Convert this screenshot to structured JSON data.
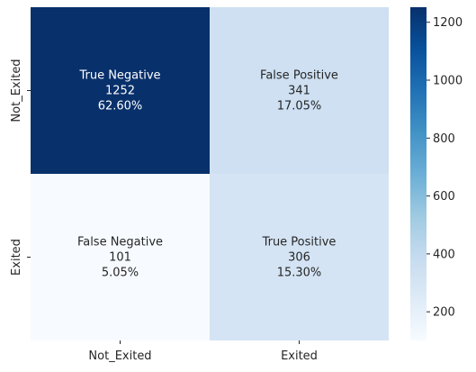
{
  "chart_data": {
    "type": "heatmap",
    "title": "",
    "xlabel": "",
    "ylabel": "",
    "x_categories": [
      "Not_Exited",
      "Exited"
    ],
    "y_categories": [
      "Not_Exited",
      "Exited"
    ],
    "cells": [
      [
        {
          "label": "True Negative",
          "count": "1252",
          "percent": "62.60%",
          "value": 1252
        },
        {
          "label": "False Positive",
          "count": "341",
          "percent": "17.05%",
          "value": 341
        }
      ],
      [
        {
          "label": "False Negative",
          "count": "101",
          "percent": "5.05%",
          "value": 101
        },
        {
          "label": "True Positive",
          "count": "306",
          "percent": "15.30%",
          "value": 306
        }
      ]
    ],
    "colorbar": {
      "min": 101,
      "max": 1252,
      "ticks": [
        "200",
        "400",
        "600",
        "800",
        "1000",
        "1200"
      ],
      "colormap": "Blues"
    },
    "grid": false
  }
}
